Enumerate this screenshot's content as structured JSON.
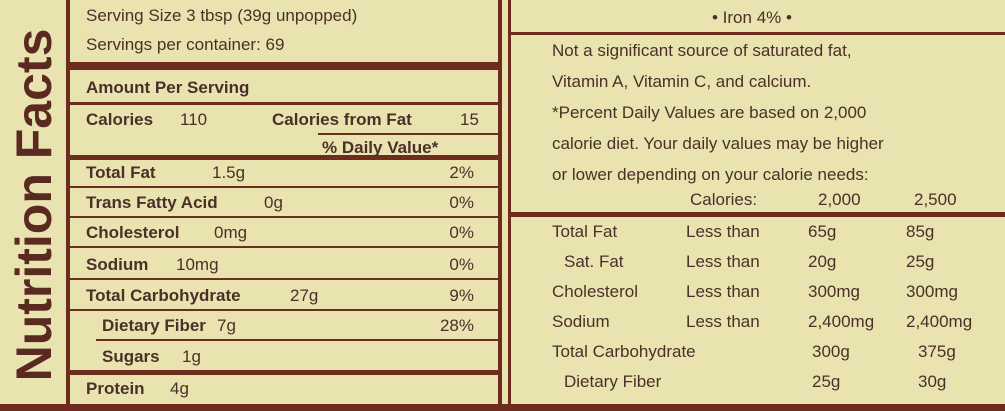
{
  "title": "Nutrition Facts",
  "serving_size": "Serving Size 3 tbsp (39g unpopped)",
  "servings": "Servings per container: 69",
  "amount_header": "Amount Per Serving",
  "calories": {
    "label": "Calories",
    "value": "110",
    "fat_label": "Calories from Fat",
    "fat_value": "15"
  },
  "daily_value_header": "% Daily Value*",
  "nutrients": [
    {
      "name": "Total Fat",
      "amount": "1.5g",
      "dv": "2%"
    },
    {
      "name": "Trans Fatty Acid",
      "amount": "0g",
      "dv": "0%"
    },
    {
      "name": "Cholesterol",
      "amount": "0mg",
      "dv": "0%"
    },
    {
      "name": "Sodium",
      "amount": "10mg",
      "dv": "0%"
    },
    {
      "name": "Total Carbohydrate",
      "amount": "27g",
      "dv": "9%"
    },
    {
      "name": "Dietary Fiber",
      "amount": "7g",
      "dv": "28%"
    },
    {
      "name": "Sugars",
      "amount": "1g"
    },
    {
      "name": "Protein",
      "amount": "4g"
    }
  ],
  "iron": "• Iron 4% •",
  "notes": [
    "Not a significant source of saturated fat,",
    "Vitamin A, Vitamin C, and calcium.",
    "*Percent Daily Values are based on 2,000",
    "calorie diet. Your daily values may be higher",
    "or lower depending on your calorie needs:"
  ],
  "reference": {
    "header": [
      "Calories:",
      "2,000",
      "2,500"
    ],
    "rows": [
      {
        "name": "Total Fat",
        "limit": "Less than",
        "cal_2000": "65g",
        "cal_2500": "85g"
      },
      {
        "name": "Sat. Fat",
        "limit": "Less than",
        "cal_2000": "20g",
        "cal_2500": "25g"
      },
      {
        "name": "Cholesterol",
        "limit": "Less than",
        "cal_2000": "300mg",
        "cal_2500": "300mg"
      },
      {
        "name": "Sodium",
        "limit": "Less than",
        "cal_2000": "2,400mg",
        "cal_2500": "2,400mg"
      },
      {
        "name": "Total Carbohydrate",
        "cal_2000": "300g",
        "cal_2500": "375g"
      },
      {
        "name": "Dietary Fiber",
        "cal_2000": "25g",
        "cal_2500": "30g"
      }
    ]
  }
}
